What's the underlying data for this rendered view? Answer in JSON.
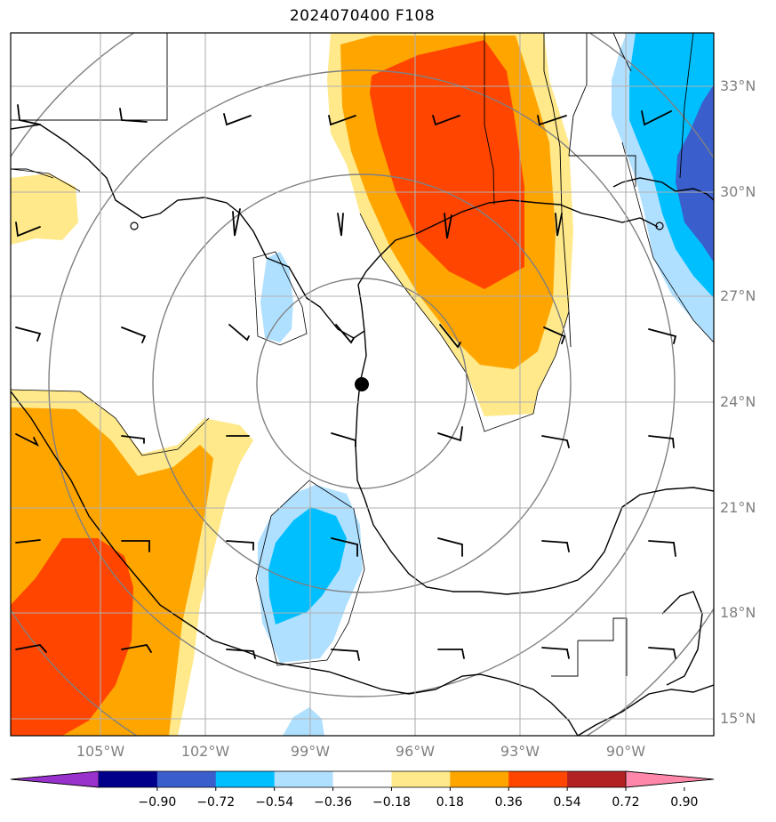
{
  "title": "2024070400 F108",
  "map": {
    "center_marker": "storm-center",
    "lat_labels": [
      "33°N",
      "30°N",
      "27°N",
      "24°N",
      "21°N",
      "18°N",
      "15°N"
    ],
    "lon_labels": [
      "105°W",
      "102°W",
      "99°W",
      "96°W",
      "93°W",
      "90°W"
    ],
    "colors": {
      "neg_090": "#9932CC",
      "neg_072": "#00008B",
      "neg_054": "#3A5FCD",
      "neg_036": "#00BFFF",
      "neg_018": "#B0E0FF",
      "zero": "#FFFFFF",
      "pos_018": "#FFE98A",
      "pos_036": "#FFA500",
      "pos_054": "#FF4500",
      "pos_072": "#B22222",
      "pos_090": "#FF88AA"
    }
  },
  "colorbar": {
    "ticks": [
      "−0.90",
      "−0.72",
      "−0.54",
      "−0.36",
      "−0.18",
      "0.18",
      "0.36",
      "0.54",
      "0.72",
      "0.90"
    ],
    "colors": [
      "#9932CC",
      "#00008B",
      "#3A5FCD",
      "#00BFFF",
      "#B0E0FF",
      "#FFFFFF",
      "#FFE98A",
      "#FFA500",
      "#FF4500",
      "#B22222",
      "#FF88AA"
    ]
  }
}
